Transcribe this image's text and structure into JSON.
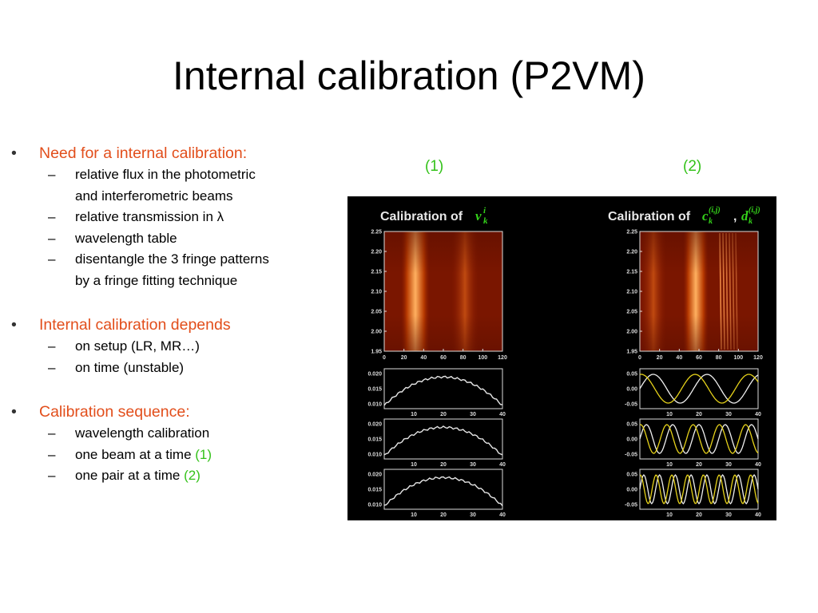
{
  "title": "Internal calibration (P2VM)",
  "bullets": [
    {
      "text": "Need for a internal calibration:",
      "subs": [
        {
          "lines": [
            "relative flux in the photometric",
            "and interferometric beams"
          ]
        },
        {
          "lines": [
            "relative transmission in λ"
          ]
        },
        {
          "lines": [
            "wavelength table"
          ]
        },
        {
          "lines": [
            "disentangle the 3 fringe patterns",
            "by a fringe fitting technique"
          ]
        }
      ]
    },
    {
      "text": "Internal calibration depends",
      "subs": [
        {
          "lines": [
            "on setup (LR, MR…)"
          ]
        },
        {
          "lines": [
            "on time (unstable)"
          ]
        }
      ]
    },
    {
      "text": "Calibration sequence:",
      "subs": [
        {
          "lines": [
            "wavelength calibration"
          ]
        },
        {
          "main": "one beam at a time",
          "tag": "(1)"
        },
        {
          "main": "one pair at a time",
          "tag": "(2)"
        }
      ]
    }
  ],
  "fig_labels": {
    "one": "(1)",
    "two": "(2)"
  },
  "figure": {
    "left_title": "Calibration of",
    "left_symbol": "v",
    "left_sup": "i",
    "left_sub": "k",
    "right_title": "Calibration of",
    "right_symbol_c": "c",
    "right_symbol_d": "d",
    "right_sup": "(i,j)",
    "right_sub": "k",
    "sep": ",",
    "image_yticks": [
      "2.25",
      "2.20",
      "2.15",
      "2.10",
      "2.05",
      "2.00",
      "1.95"
    ],
    "image_xticks": [
      "0",
      "20",
      "40",
      "60",
      "80",
      "100",
      "120"
    ],
    "left_line_yticks": [
      "0.020",
      "0.015",
      "0.010"
    ],
    "right_line_yticks": [
      "0.05",
      "0.00",
      "-0.05"
    ],
    "line_xticks": [
      "10",
      "20",
      "30",
      "40"
    ]
  }
}
